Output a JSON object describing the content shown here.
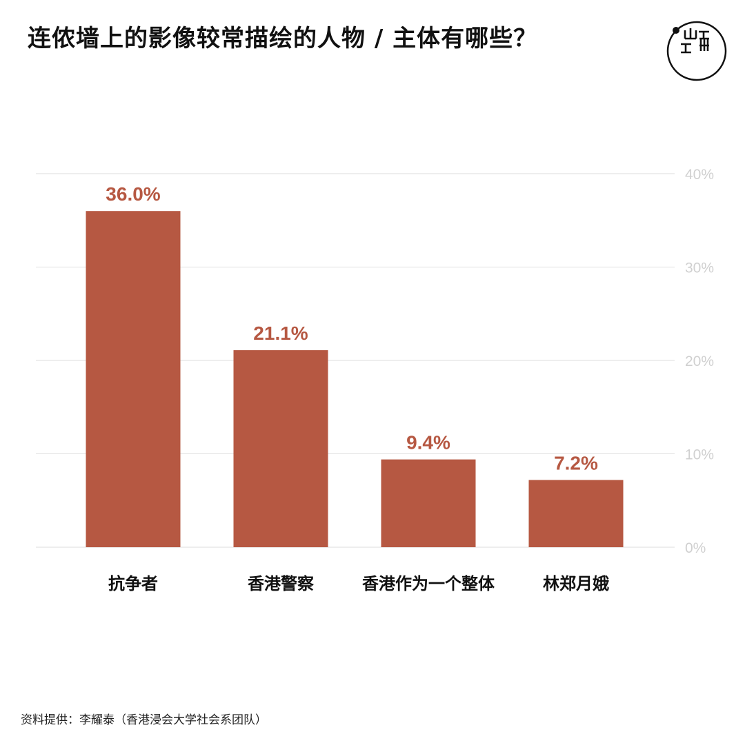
{
  "title": "连侬墙上的影像较常描绘的人物 / 主体有哪些？",
  "logo": {
    "name": "端 logo",
    "glyph": "端"
  },
  "colors": {
    "bar": "#b65842",
    "label": "#b65842",
    "grid": "#dedede",
    "tick": "#d0d0d0",
    "text": "#111111"
  },
  "chart_data": {
    "type": "bar",
    "categories": [
      "抗争者",
      "香港警察",
      "香港作为一个整体",
      "林郑月娥"
    ],
    "values": [
      36.0,
      21.1,
      9.4,
      7.2
    ],
    "value_labels": [
      "36.0%",
      "21.1%",
      "9.4%",
      "7.2%"
    ],
    "yticks": [
      0,
      10,
      20,
      30,
      40
    ],
    "ytick_labels": [
      "0%",
      "10%",
      "20%",
      "30%",
      "40%"
    ],
    "ylim": [
      0,
      40
    ],
    "grid": true,
    "axis_side": "right"
  },
  "source": "资料提供：李耀泰（香港浸会大学社会系团队）"
}
